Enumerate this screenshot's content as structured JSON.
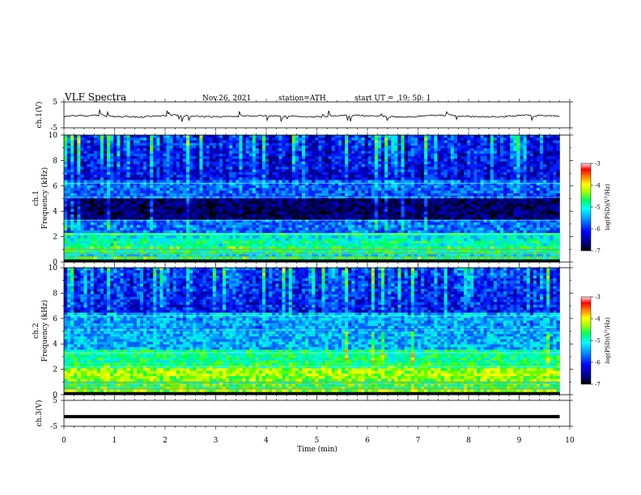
{
  "header": {
    "title": "VLF  Spectra",
    "date": "Nov.26, 2021",
    "station": "station=ATH",
    "start_label": "start  UT  =",
    "start_time": "19: 50: 1"
  },
  "chart_data": [
    {
      "type": "line",
      "name": "ch1-waveform",
      "ylabel": "ch.1(V)",
      "ylim": [
        -5,
        5
      ],
      "yticks": [
        5,
        -5
      ],
      "baseline": -0.5
    },
    {
      "type": "heatmap",
      "name": "ch1-spectrogram",
      "ylabel": "ch.1\nFrequency (kHz)",
      "ylim": [
        0,
        10
      ],
      "yticks": [
        0,
        2,
        4,
        6,
        8,
        10
      ],
      "colorbar": {
        "label": "log(PSD)(V²/Hz)",
        "ticks": [
          -3,
          -4,
          -5,
          -6,
          -7
        ],
        "range": [
          -7,
          -3
        ]
      }
    },
    {
      "type": "heatmap",
      "name": "ch2-spectrogram",
      "ylabel": "ch.2\nFrequency (kHz)",
      "ylim": [
        0,
        10
      ],
      "yticks": [
        0,
        2,
        4,
        6,
        8,
        10
      ],
      "colorbar": {
        "label": "log(PSD)(V²/Hz)",
        "ticks": [
          -3,
          -4,
          -5,
          -6,
          -7
        ],
        "range": [
          -7,
          -3
        ]
      }
    },
    {
      "type": "line",
      "name": "ch3-waveform",
      "ylabel": "ch.3(V)",
      "ylim": [
        -5,
        5
      ],
      "yticks": [
        5,
        -5
      ],
      "baseline": -1.3
    }
  ],
  "xaxis": {
    "label": "Time  (min)",
    "xlim": [
      0,
      10
    ],
    "ticks": [
      0,
      1,
      2,
      3,
      4,
      5,
      6,
      7,
      8,
      9,
      10
    ],
    "data_end": 9.8
  },
  "colorbar_labels": {
    "label_plain": "log(PSD)(V",
    "label_sup": "2",
    "label_end": "/Hz)"
  }
}
